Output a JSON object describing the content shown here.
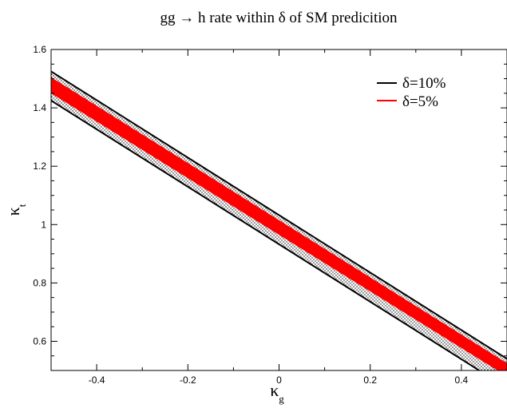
{
  "chart_data": {
    "type": "area",
    "title": "gg → h rate within δ of SM predicition",
    "xlabel": "κ",
    "xlabel_sub": "g",
    "ylabel": "κ",
    "ylabel_sub": "t",
    "xlim": [
      -0.5,
      0.5
    ],
    "ylim": [
      0.5,
      1.6
    ],
    "xticks": [
      -0.4,
      -0.2,
      0,
      0.2,
      0.4
    ],
    "xtick_labels": [
      "-0.4",
      "-0.2",
      "0",
      "0.2",
      "0.4"
    ],
    "yticks": [
      0.6,
      0.8,
      1.0,
      1.2,
      1.4,
      1.6
    ],
    "ytick_labels": [
      "0.6",
      "0.8",
      "1",
      "1.2",
      "1.4",
      "1.6"
    ],
    "grid": false,
    "legend_position": "top-right",
    "series": [
      {
        "name": "δ=10%",
        "color": "#000000",
        "style": "outline-with-dotted-fill",
        "lower_edge": {
          "x": [
            -0.5,
            0.5
          ],
          "y": [
            1.425,
            0.44
          ]
        },
        "upper_edge": {
          "x": [
            -0.5,
            0.5
          ],
          "y": [
            1.525,
            0.54
          ]
        }
      },
      {
        "name": "δ=5%",
        "color": "#ff0000",
        "style": "filled-band",
        "lower_edge": {
          "x": [
            -0.5,
            0.5
          ],
          "y": [
            1.45,
            0.48
          ]
        },
        "upper_edge": {
          "x": [
            -0.5,
            0.5
          ],
          "y": [
            1.505,
            0.525
          ]
        }
      }
    ]
  }
}
